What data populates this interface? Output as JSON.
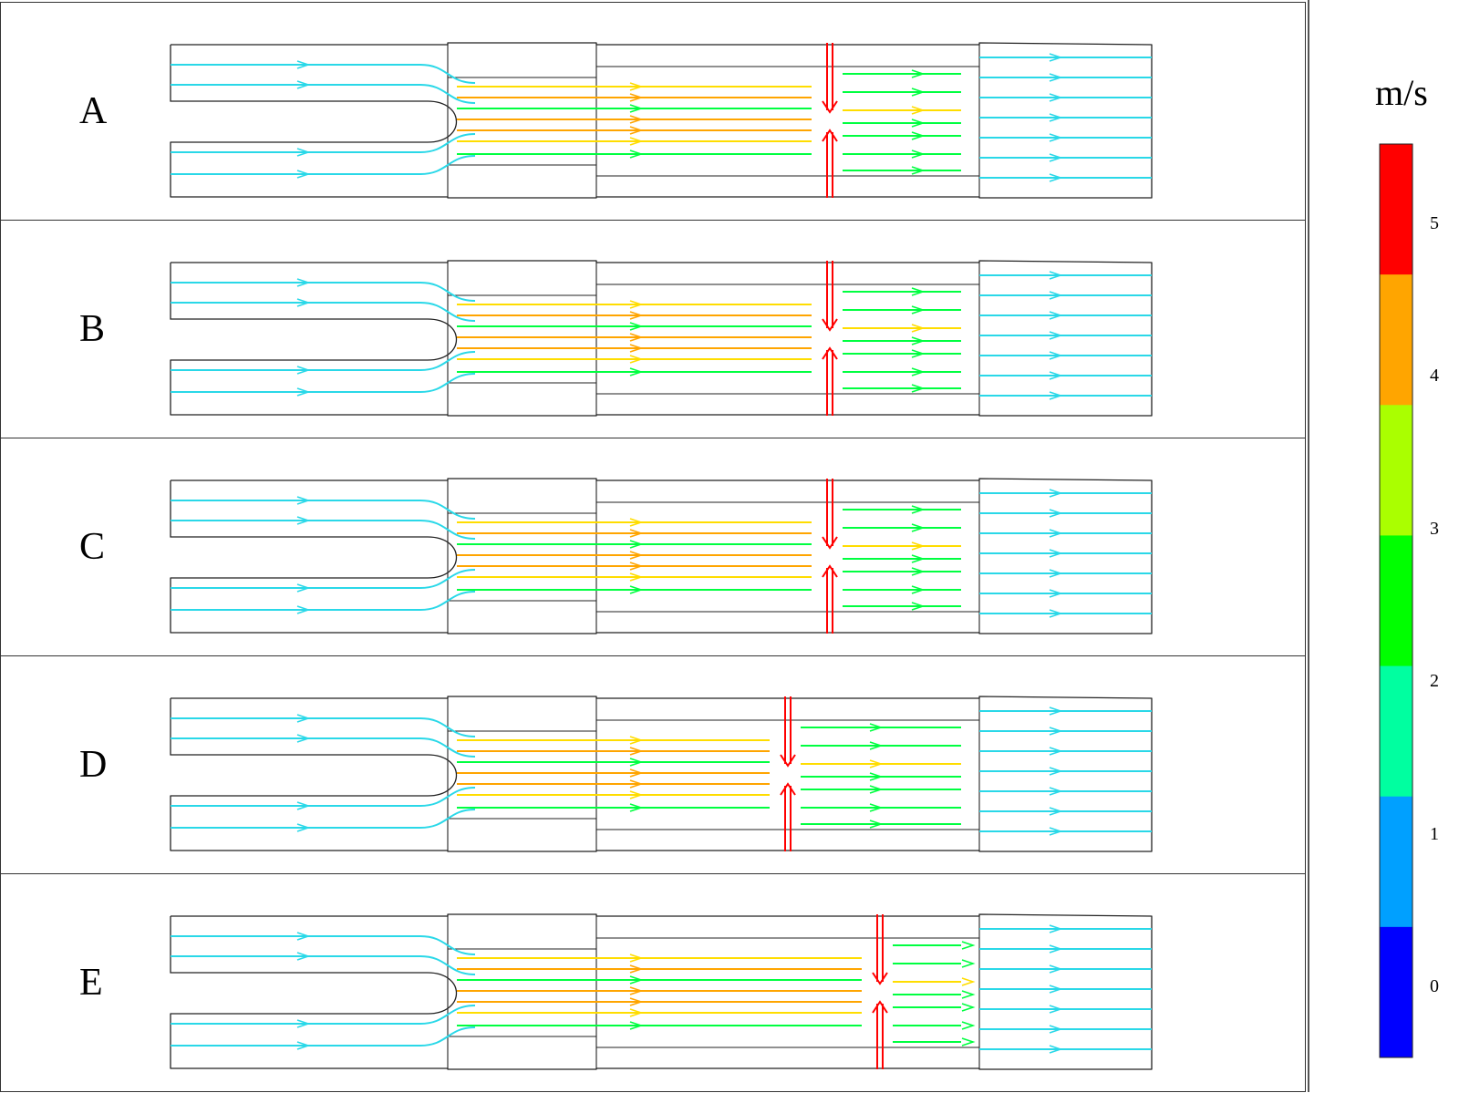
{
  "panels": [
    {
      "label": "A",
      "jet_fraction": 0.61
    },
    {
      "label": "B",
      "jet_fraction": 0.61
    },
    {
      "label": "C",
      "jet_fraction": 0.61
    },
    {
      "label": "D",
      "jet_fraction": 0.5
    },
    {
      "label": "E",
      "jet_fraction": 0.74
    }
  ],
  "legend": {
    "unit": "m/s",
    "ticks": [
      "5",
      "4",
      "3",
      "2",
      "1",
      "0"
    ],
    "bands": [
      "#ff0000",
      "#ffa500",
      "#aaff00",
      "#00ff00",
      "#00ffa0",
      "#00a0ff",
      "#0000ff"
    ]
  },
  "colors": {
    "slow": "#2aa7f0",
    "inlet": "#2ad8e8",
    "mid": "#00ff40",
    "fast": "#ffa500",
    "peak": "#ffdd00",
    "jet": "#ff0000",
    "outline": "#222222"
  }
}
